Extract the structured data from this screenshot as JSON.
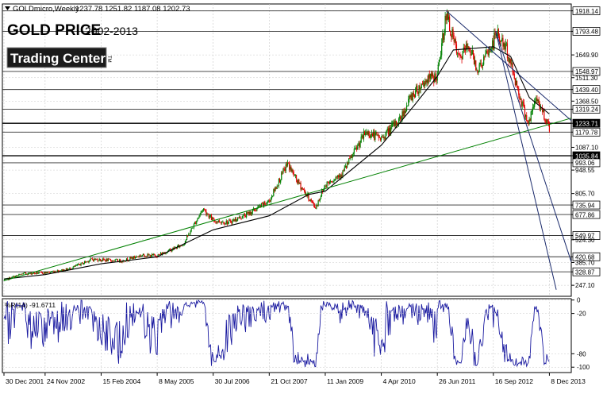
{
  "window": {
    "symbol_timeframe": "GOLDmicro,Weekly",
    "ohlc": "1237.78 1251.82 1187.08 1202.73"
  },
  "header": {
    "title_main": "GOLD PRICE",
    "title_years": "2002-2013",
    "logo_text": "Trading Center",
    "logo_suffix": "TM"
  },
  "indicator": {
    "label": "%R(14) -91.6711"
  },
  "chart_data": {
    "type": "candlestick",
    "price_panel": {
      "ylim": [
        180,
        1960
      ],
      "price_axis_ticks": [
        1918.14,
        1793.48,
        1649.9,
        1548.97,
        1511.3,
        1439.4,
        1368.5,
        1319.24,
        1233.71,
        1179.78,
        1087.1,
        1035.84,
        993.06,
        948.55,
        805.7,
        735.94,
        677.86,
        549.97,
        524.3,
        420.68,
        385.7,
        328.87,
        247.1
      ],
      "boxed_levels": [
        1918.14,
        1793.48,
        1548.97,
        1439.4,
        1319.24,
        1233.71,
        1179.78,
        1035.84,
        993.06,
        735.94,
        677.86,
        549.97,
        420.68,
        328.87
      ],
      "dark_boxed_levels": [
        1233.71,
        1035.84
      ],
      "close_series": [
        [
          "2001-12-30",
          278
        ],
        [
          "2002-06-01",
          318
        ],
        [
          "2002-11-24",
          323
        ],
        [
          "2003-06-01",
          345
        ],
        [
          "2003-12-01",
          405
        ],
        [
          "2004-02-15",
          402
        ],
        [
          "2004-08-01",
          395
        ],
        [
          "2005-01-01",
          430
        ],
        [
          "2005-05-08",
          428
        ],
        [
          "2005-12-01",
          495
        ],
        [
          "2006-05-10",
          715
        ],
        [
          "2006-07-30",
          640
        ],
        [
          "2006-12-01",
          630
        ],
        [
          "2007-05-01",
          680
        ],
        [
          "2007-10-21",
          760
        ],
        [
          "2008-03-15",
          990
        ],
        [
          "2008-06-01",
          880
        ],
        [
          "2008-10-25",
          720
        ],
        [
          "2009-01-11",
          860
        ],
        [
          "2009-06-01",
          935
        ],
        [
          "2009-12-01",
          1180
        ],
        [
          "2010-04-04",
          1140
        ],
        [
          "2010-09-01",
          1260
        ],
        [
          "2010-12-01",
          1400
        ],
        [
          "2011-04-01",
          1500
        ],
        [
          "2011-06-26",
          1520
        ],
        [
          "2011-09-05",
          1900
        ],
        [
          "2011-12-15",
          1620
        ],
        [
          "2012-03-01",
          1710
        ],
        [
          "2012-05-15",
          1560
        ],
        [
          "2012-09-16",
          1720
        ],
        [
          "2012-10-05",
          1790
        ],
        [
          "2013-01-01",
          1680
        ],
        [
          "2013-04-15",
          1400
        ],
        [
          "2013-06-25",
          1230
        ],
        [
          "2013-08-25",
          1390
        ],
        [
          "2013-11-15",
          1250
        ],
        [
          "2013-12-08",
          1203
        ]
      ],
      "moving_average": [
        [
          "2001-12-30",
          285
        ],
        [
          "2002-11-24",
          312
        ],
        [
          "2004-02-15",
          378
        ],
        [
          "2005-05-08",
          420
        ],
        [
          "2006-07-30",
          585
        ],
        [
          "2007-10-21",
          670
        ],
        [
          "2008-09-01",
          800
        ],
        [
          "2009-01-11",
          820
        ],
        [
          "2010-04-04",
          1100
        ],
        [
          "2011-01-01",
          1350
        ],
        [
          "2011-06-26",
          1520
        ],
        [
          "2011-11-01",
          1680
        ],
        [
          "2012-09-16",
          1700
        ],
        [
          "2013-02-01",
          1640
        ],
        [
          "2013-07-01",
          1390
        ],
        [
          "2013-12-08",
          1290
        ]
      ],
      "trend_lines": [
        {
          "color": "#008000",
          "start": [
            "2001-12-30",
            275
          ],
          "end": [
            "2014-06-01",
            1265
          ]
        },
        {
          "color": "#1a2a6b",
          "start": [
            "2011-09-05",
            1918.14
          ],
          "end": [
            "2014-06-01",
            1250
          ]
        },
        {
          "color": "#1a2a6b",
          "start": [
            "2012-10-05",
            1793.48
          ],
          "end": [
            "2014-06-01",
            390
          ]
        },
        {
          "color": "#1a2a6b",
          "start": [
            "2012-10-05",
            1793.48
          ],
          "end": [
            "2014-02-01",
            220
          ]
        }
      ]
    },
    "indicator_panel": {
      "name": "%R(14)",
      "current_value": -91.6711,
      "ylim": [
        -108,
        2
      ],
      "ticks": [
        0,
        -20,
        -80,
        -100
      ],
      "line_color": "#1a1aa0"
    },
    "x_axis": {
      "range": [
        "2001-12-30",
        "2014-06-01"
      ],
      "tick_labels": [
        [
          "2001-12-30",
          "30 Dec 2001"
        ],
        [
          "2002-11-24",
          "24 Nov 2002"
        ],
        [
          "2004-02-15",
          "15 Feb 2004"
        ],
        [
          "2005-05-08",
          "8 May 2005"
        ],
        [
          "2006-07-30",
          "30 Jul 2006"
        ],
        [
          "2007-10-21",
          "21 Oct 2007"
        ],
        [
          "2009-01-11",
          "11 Jan 2009"
        ],
        [
          "2010-04-04",
          "4 Apr 2010"
        ],
        [
          "2011-06-26",
          "26 Jun 2011"
        ],
        [
          "2012-09-16",
          "16 Sep 2012"
        ],
        [
          "2013-12-08",
          "8 Dec 2013"
        ]
      ]
    },
    "colors": {
      "bull": "#008000",
      "bear": "#e00000",
      "ma": "#000000",
      "grid": "#c8c8c8",
      "level_line": "#333333",
      "background": "#ffffff"
    },
    "grid": true
  }
}
